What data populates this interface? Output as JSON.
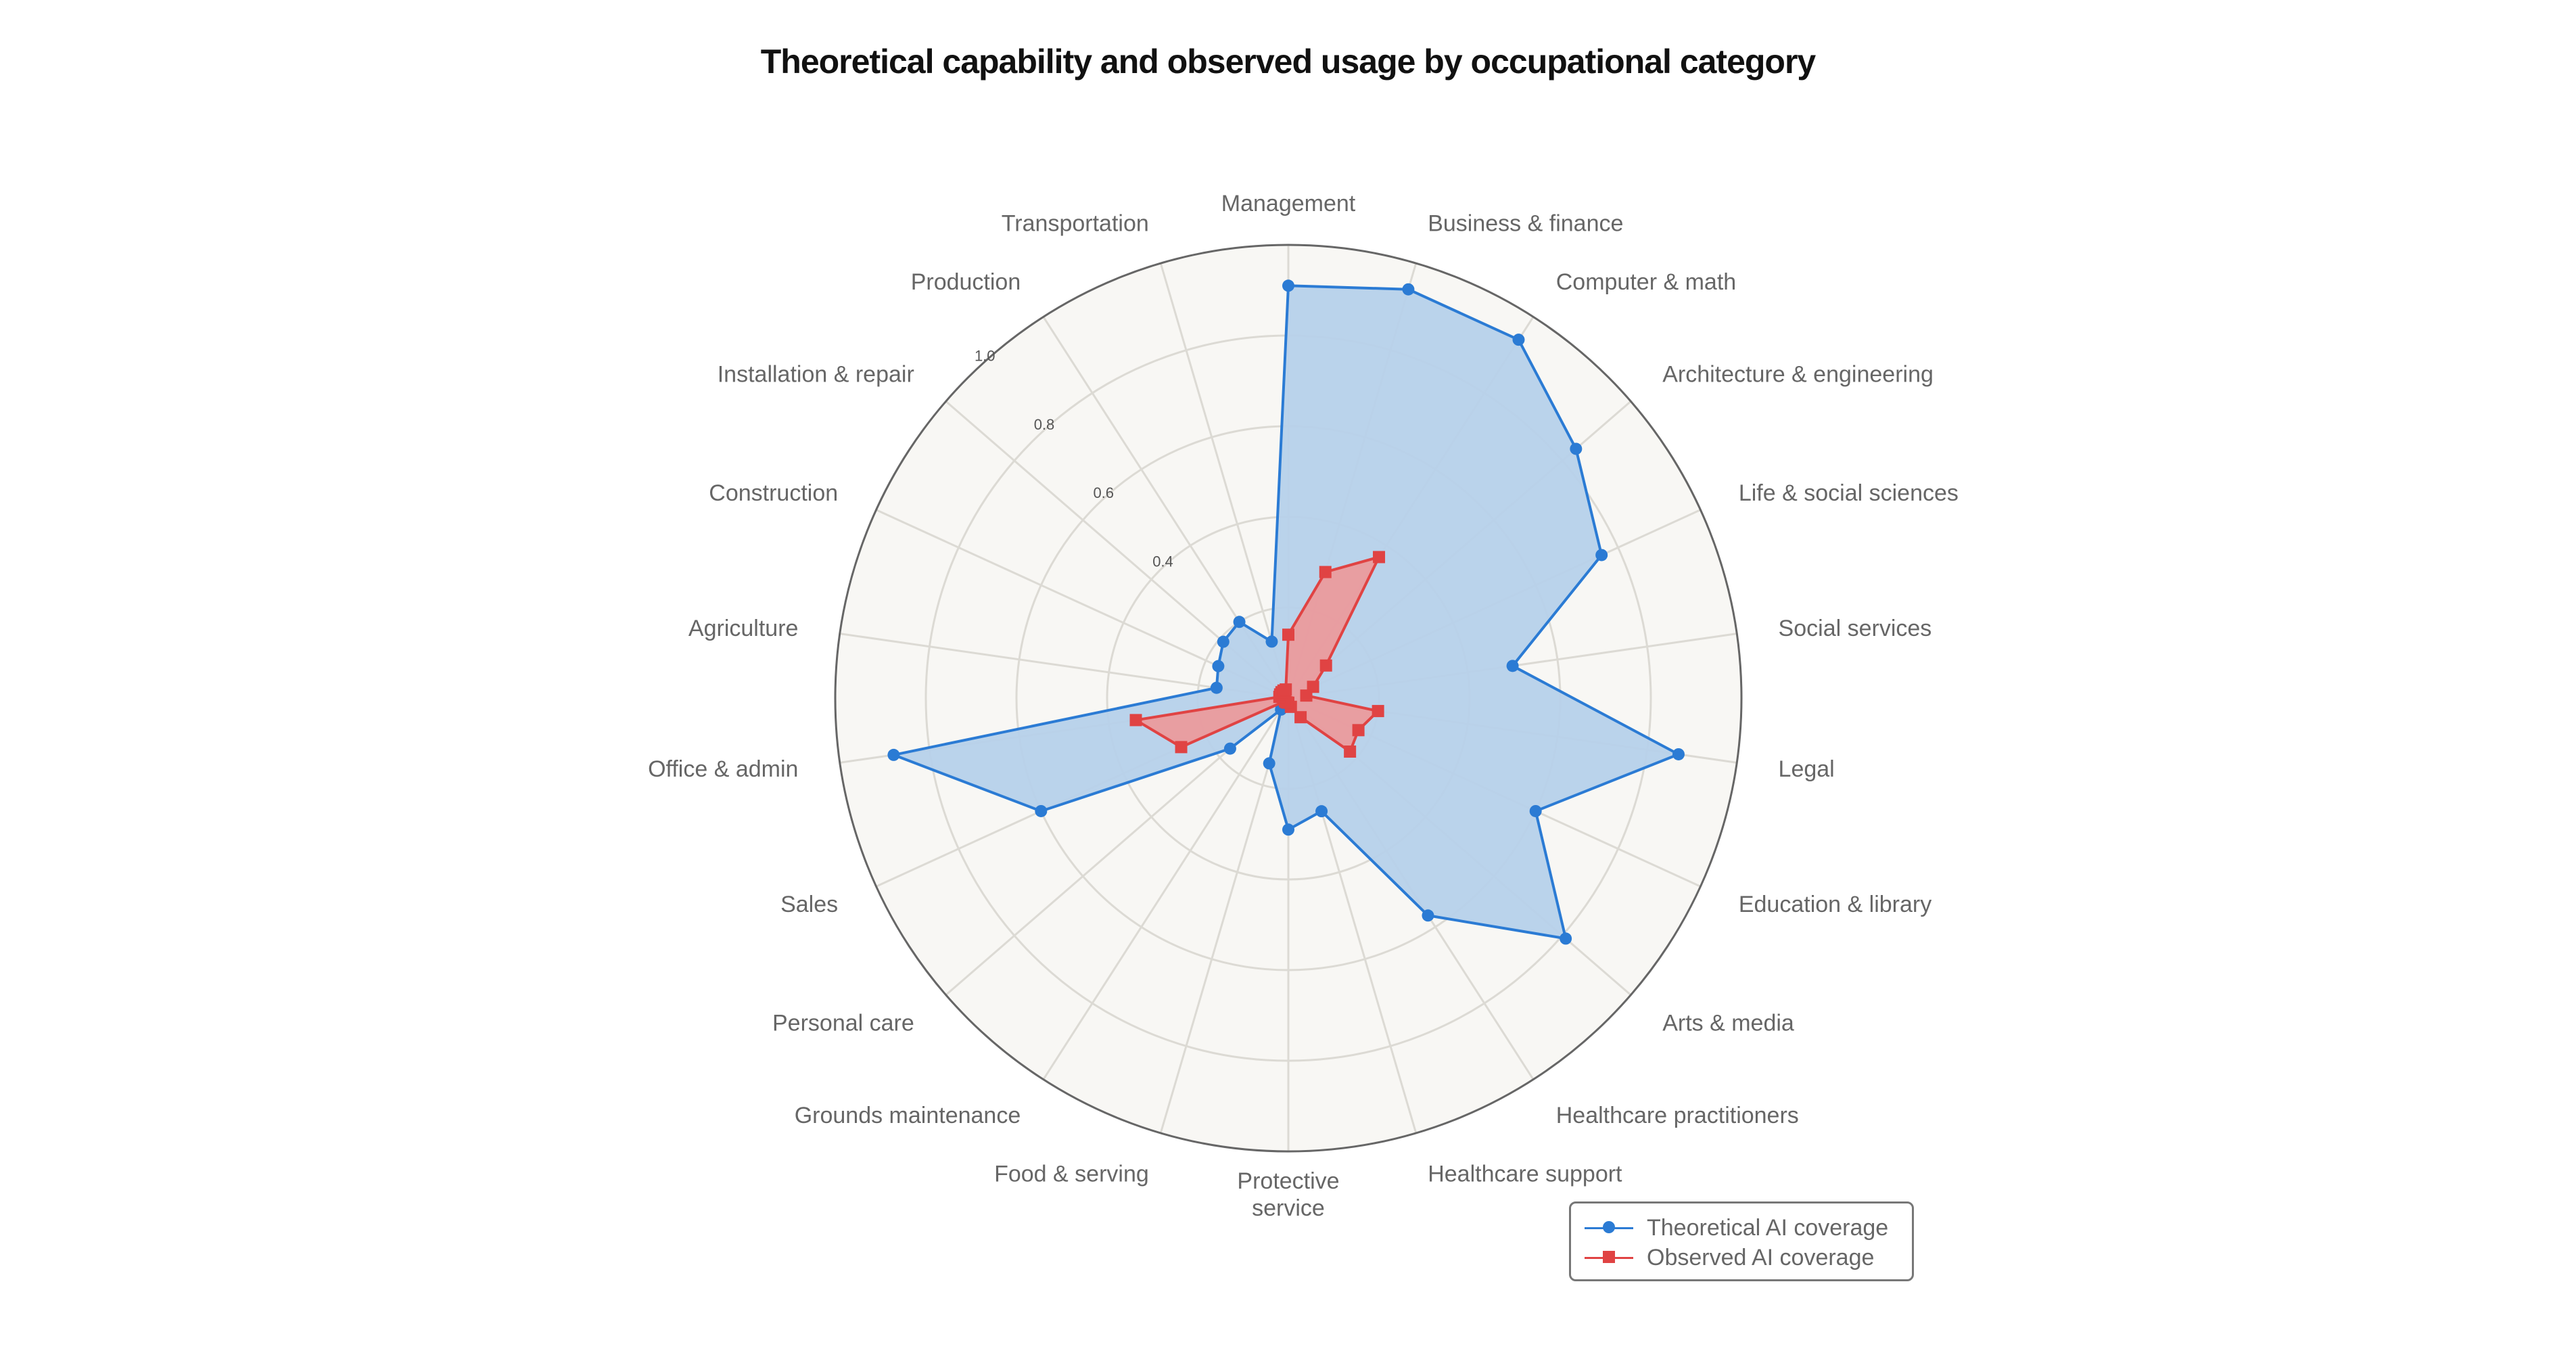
{
  "chart_data": {
    "type": "radar",
    "title": "Theoretical capability and observed usage by occupational category",
    "categories": [
      [
        "Management"
      ],
      [
        "Business & finance"
      ],
      [
        "Computer & math"
      ],
      [
        "Architecture & engineering"
      ],
      [
        "Life & social sciences"
      ],
      [
        "Social services"
      ],
      [
        "Legal"
      ],
      [
        "Education & library"
      ],
      [
        "Arts & media"
      ],
      [
        "Healthcare practitioners"
      ],
      [
        "Healthcare support"
      ],
      [
        "Protective",
        "service"
      ],
      [
        "Food & serving"
      ],
      [
        "Grounds maintenance"
      ],
      [
        "Personal care"
      ],
      [
        "Sales"
      ],
      [
        "Office & admin"
      ],
      [
        "Agriculture"
      ],
      [
        "Construction"
      ],
      [
        "Installation & repair"
      ],
      [
        "Production"
      ],
      [
        "Transportation"
      ]
    ],
    "radial_range": [
      0,
      1.0
    ],
    "radial_ticks": [
      "0.4",
      "0.6",
      "0.8",
      "1.0"
    ],
    "radial_tick_values": [
      0.4,
      0.6,
      0.8,
      1.0
    ],
    "grid_rings": [
      0.2,
      0.4,
      0.6,
      0.8,
      1.0
    ],
    "grid": true,
    "legend_position": "bottom-right",
    "series": [
      {
        "name": "Theoretical AI coverage",
        "color": "#2b7bd4",
        "fill": "#b6d1ea",
        "marker": "circle",
        "values": [
          0.91,
          0.94,
          0.94,
          0.84,
          0.76,
          0.5,
          0.87,
          0.6,
          0.81,
          0.57,
          0.26,
          0.29,
          0.15,
          0.03,
          0.17,
          0.6,
          0.88,
          0.16,
          0.17,
          0.19,
          0.2,
          0.13
        ]
      },
      {
        "name": "Observed AI coverage",
        "color": "#e04343",
        "fill": "#f09494",
        "marker": "square",
        "values": [
          0.14,
          0.29,
          0.37,
          0.11,
          0.06,
          0.04,
          0.2,
          0.17,
          0.18,
          0.05,
          0.02,
          0.01,
          0.01,
          0.01,
          0.01,
          0.26,
          0.34,
          0.02,
          0.02,
          0.02,
          0.02,
          0.02
        ]
      }
    ]
  }
}
